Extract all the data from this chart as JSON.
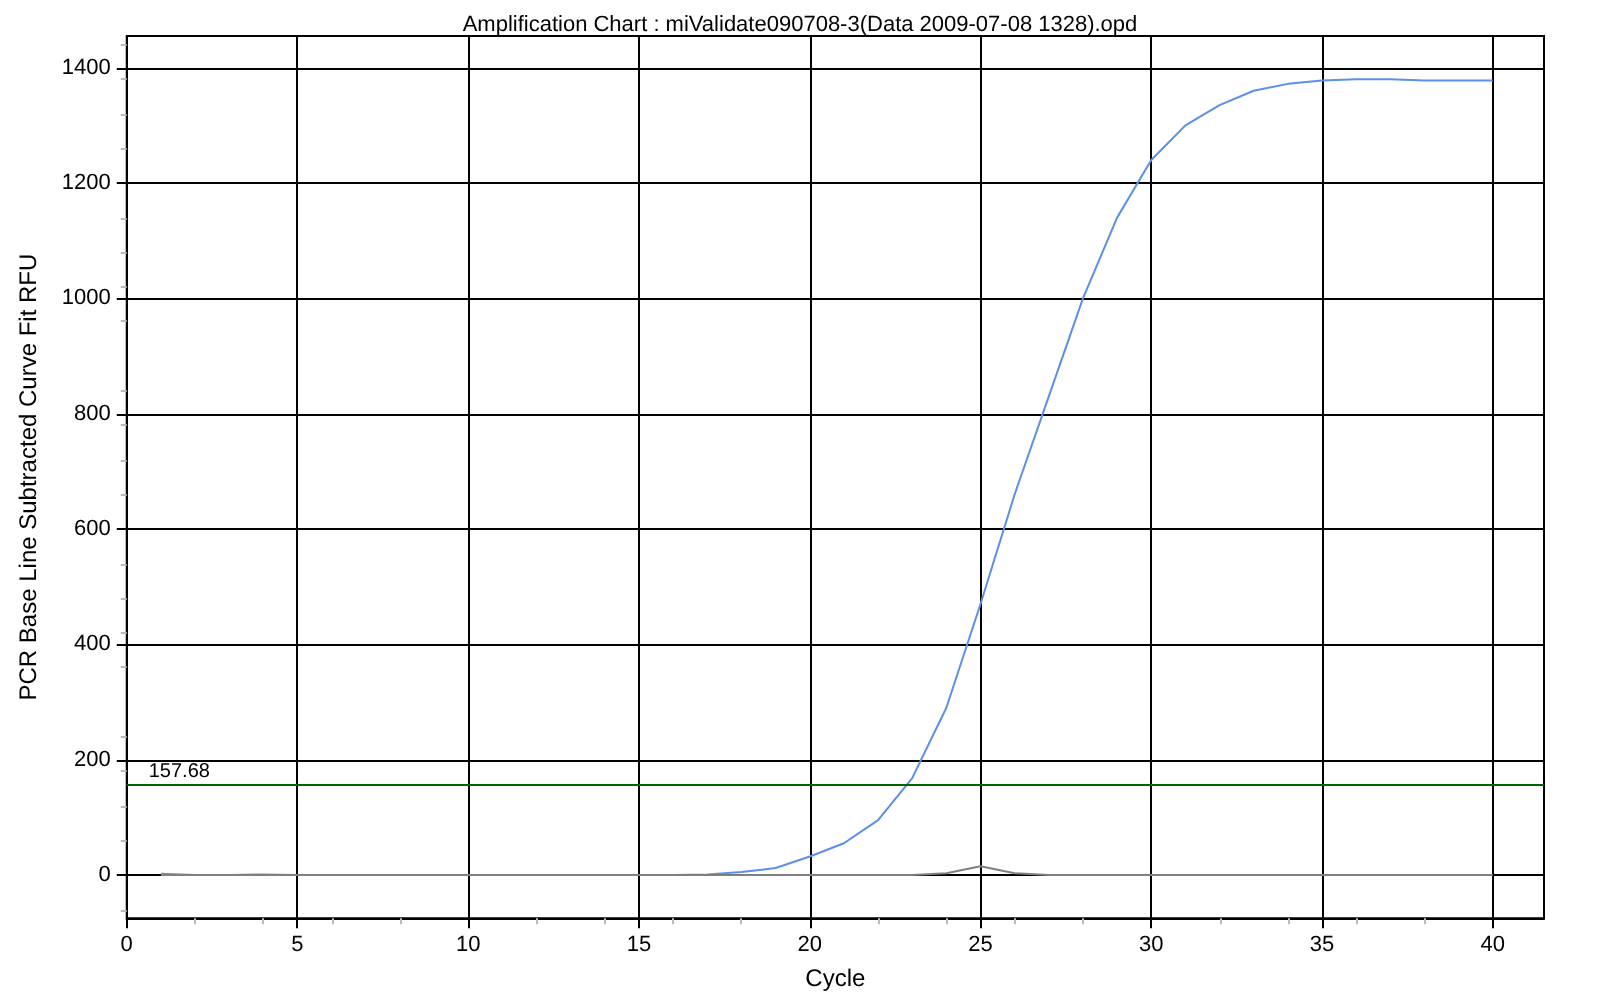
{
  "chart_data": {
    "type": "line",
    "title": "Amplification Chart : miValidate090708-3(Data 2009-07-08 1328).opd",
    "xlabel": "Cycle",
    "ylabel": "PCR Base Line Subtracted Curve Fit RFU",
    "x": [
      1,
      2,
      3,
      4,
      5,
      6,
      7,
      8,
      9,
      10,
      11,
      12,
      13,
      14,
      15,
      16,
      17,
      18,
      19,
      20,
      21,
      22,
      23,
      24,
      25,
      26,
      27,
      28,
      29,
      30,
      31,
      32,
      33,
      34,
      35,
      36,
      37,
      38,
      39,
      40
    ],
    "series": [
      {
        "color": "#5b8fe8",
        "values": [
          2,
          0,
          0,
          1,
          0,
          0,
          0,
          0,
          0,
          0,
          0,
          0,
          0,
          0,
          0,
          0,
          1,
          5,
          12,
          32,
          55,
          95,
          168,
          290,
          470,
          660,
          830,
          1000,
          1140,
          1240,
          1300,
          1335,
          1360,
          1372,
          1378,
          1380,
          1380,
          1378,
          1378,
          1378
        ]
      },
      {
        "color": "#808080",
        "values": [
          0,
          0,
          0,
          0,
          0,
          0,
          0,
          0,
          0,
          0,
          0,
          0,
          0,
          0,
          0,
          0,
          0,
          0,
          0,
          0,
          0,
          0,
          0,
          3,
          15,
          3,
          0,
          0,
          0,
          0,
          0,
          0,
          0,
          0,
          0,
          0,
          0,
          0,
          0,
          0
        ]
      }
    ],
    "xlim": [
      0,
      41.5
    ],
    "xticks": [
      0,
      5,
      10,
      15,
      20,
      25,
      30,
      35,
      40
    ],
    "ylim": [
      -75,
      1455
    ],
    "yticks": [
      0,
      200,
      400,
      600,
      800,
      1000,
      1200,
      1400
    ],
    "ref_lines": [
      {
        "axis": "y",
        "value": 157.68,
        "label": "157.68",
        "color": "#006400"
      }
    ],
    "grid": true,
    "marker": "none",
    "line_style": "solid"
  }
}
